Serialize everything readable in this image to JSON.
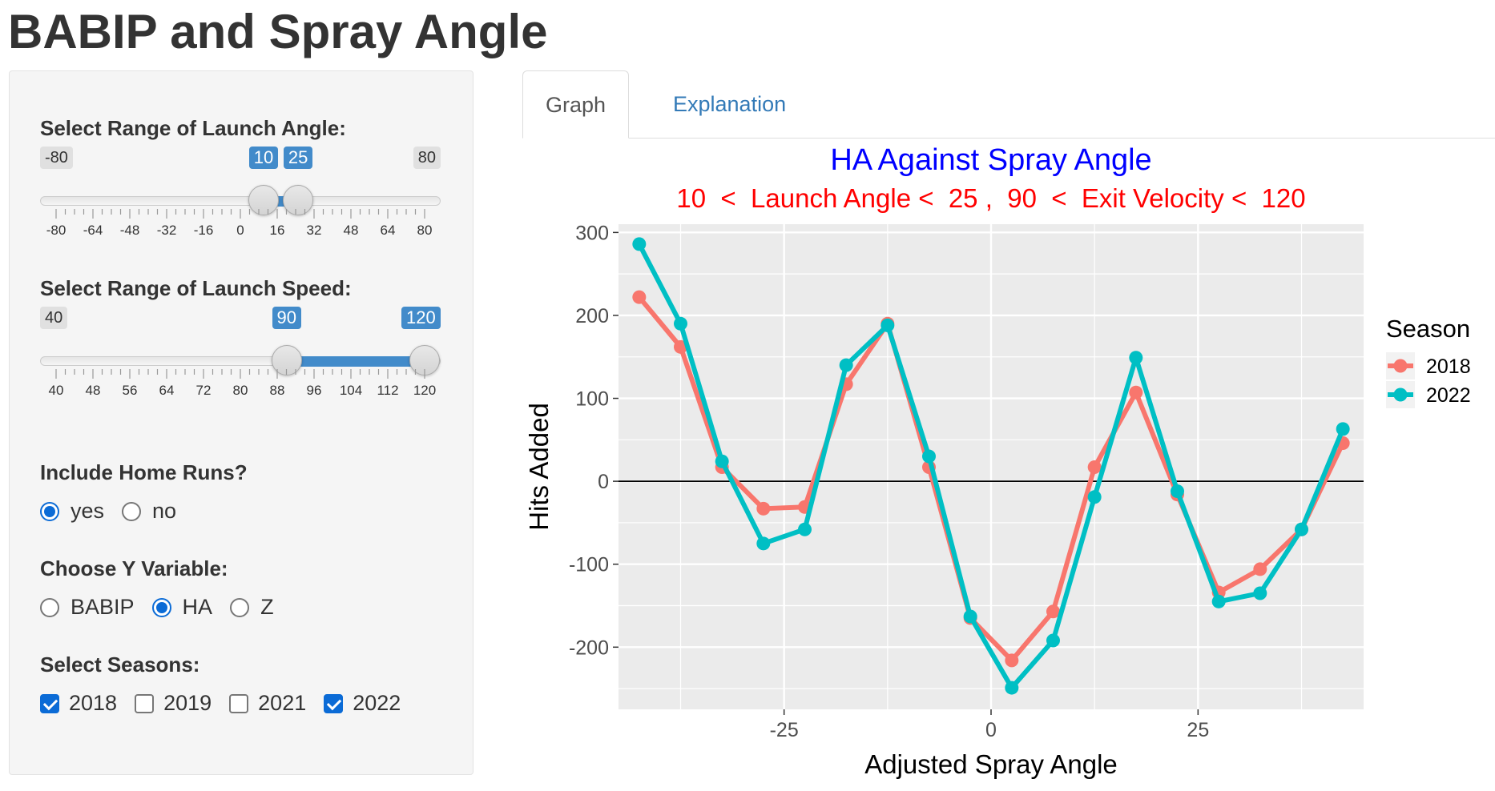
{
  "page": {
    "title": "BABIP and Spray Angle"
  },
  "sidebar": {
    "launch_angle": {
      "label": "Select Range of Launch Angle:",
      "min_label": "-80",
      "max_label": "80",
      "value_low": 10,
      "value_high": 25,
      "low_label": "10",
      "high_label": "25",
      "min": -80,
      "max": 80,
      "ticks": [
        "-80",
        "-64",
        "-48",
        "-32",
        "-16",
        "0",
        "16",
        "32",
        "48",
        "64",
        "80"
      ]
    },
    "launch_speed": {
      "label": "Select Range of Launch Speed:",
      "min_label": "40",
      "max_label": "120",
      "value_low": 90,
      "value_high": 120,
      "low_label": "90",
      "high_label": "120",
      "min": 40,
      "max": 120,
      "ticks": [
        "40",
        "48",
        "56",
        "64",
        "72",
        "80",
        "88",
        "96",
        "104",
        "112",
        "120"
      ]
    },
    "home_runs": {
      "label": "Include Home Runs?",
      "options": [
        "yes",
        "no"
      ],
      "selected": "yes"
    },
    "y_variable": {
      "label": "Choose Y Variable:",
      "options": [
        "BABIP",
        "HA",
        "Z"
      ],
      "selected": "HA"
    },
    "seasons": {
      "label": "Select Seasons:",
      "options": [
        "2018",
        "2019",
        "2021",
        "2022"
      ],
      "checked": [
        "2018",
        "2022"
      ]
    }
  },
  "tabs": [
    {
      "label": "Graph",
      "active": true
    },
    {
      "label": "Explanation",
      "active": false
    }
  ],
  "chart_data": {
    "type": "line",
    "title": "HA Against Spray Angle",
    "subtitle": "10  <  Launch Angle <  25 ,  90  <  Exit Velocity <  120",
    "xlabel": "Adjusted Spray Angle",
    "ylabel": "Hits Added",
    "xlim": [
      -45,
      45
    ],
    "ylim": [
      -275,
      310
    ],
    "xticks": [
      -25,
      0,
      25
    ],
    "yticks": [
      -200,
      -100,
      0,
      100,
      200,
      300
    ],
    "grid": true,
    "hline_y": 0,
    "legend_title": "Season",
    "legend_position": "right",
    "x": [
      -42.5,
      -37.5,
      -32.5,
      -27.5,
      -22.5,
      -17.5,
      -12.5,
      -7.5,
      -2.5,
      2.5,
      7.5,
      12.5,
      17.5,
      22.5,
      27.5,
      32.5,
      37.5,
      42.5
    ],
    "series": [
      {
        "name": "2018",
        "color": "#F8766D",
        "values": [
          222,
          162,
          17,
          -33,
          -31,
          117,
          190,
          17,
          -165,
          -216,
          -157,
          17,
          107,
          -16,
          -134,
          -106,
          -58,
          46
        ]
      },
      {
        "name": "2022",
        "color": "#00BFC4",
        "values": [
          286,
          190,
          24,
          -75,
          -58,
          140,
          188,
          30,
          -163,
          -249,
          -192,
          -19,
          149,
          -12,
          -145,
          -135,
          -58,
          63
        ]
      }
    ]
  },
  "colors": {
    "title": "#0000ff",
    "subtitle": "#ff0000",
    "panel_bg": "#ebebeb",
    "accent": "#428bca"
  }
}
